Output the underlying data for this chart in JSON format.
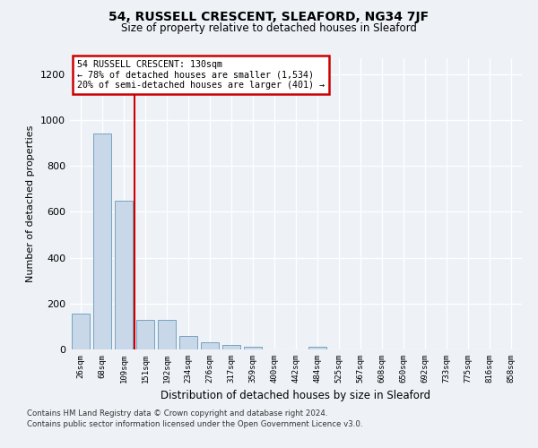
{
  "title1": "54, RUSSELL CRESCENT, SLEAFORD, NG34 7JF",
  "title2": "Size of property relative to detached houses in Sleaford",
  "xlabel": "Distribution of detached houses by size in Sleaford",
  "ylabel": "Number of detached properties",
  "bin_labels": [
    "26sqm",
    "68sqm",
    "109sqm",
    "151sqm",
    "192sqm",
    "234sqm",
    "276sqm",
    "317sqm",
    "359sqm",
    "400sqm",
    "442sqm",
    "484sqm",
    "525sqm",
    "567sqm",
    "608sqm",
    "650sqm",
    "692sqm",
    "733sqm",
    "775sqm",
    "816sqm",
    "858sqm"
  ],
  "bar_values": [
    155,
    940,
    650,
    130,
    128,
    58,
    30,
    18,
    10,
    0,
    0,
    12,
    0,
    0,
    0,
    0,
    0,
    0,
    0,
    0,
    0
  ],
  "bar_color": "#c8d8e8",
  "bar_edge_color": "#6699bb",
  "annotation_text": "54 RUSSELL CRESCENT: 130sqm\n← 78% of detached houses are smaller (1,534)\n20% of semi-detached houses are larger (401) →",
  "annotation_box_color": "#ffffff",
  "annotation_box_edge": "#cc0000",
  "red_line_color": "#cc0000",
  "red_line_x": 2.5,
  "ylim": [
    0,
    1270
  ],
  "yticks": [
    0,
    200,
    400,
    600,
    800,
    1000,
    1200
  ],
  "footer1": "Contains HM Land Registry data © Crown copyright and database right 2024.",
  "footer2": "Contains public sector information licensed under the Open Government Licence v3.0.",
  "background_color": "#eef2f7",
  "plot_background": "#eef2f7"
}
